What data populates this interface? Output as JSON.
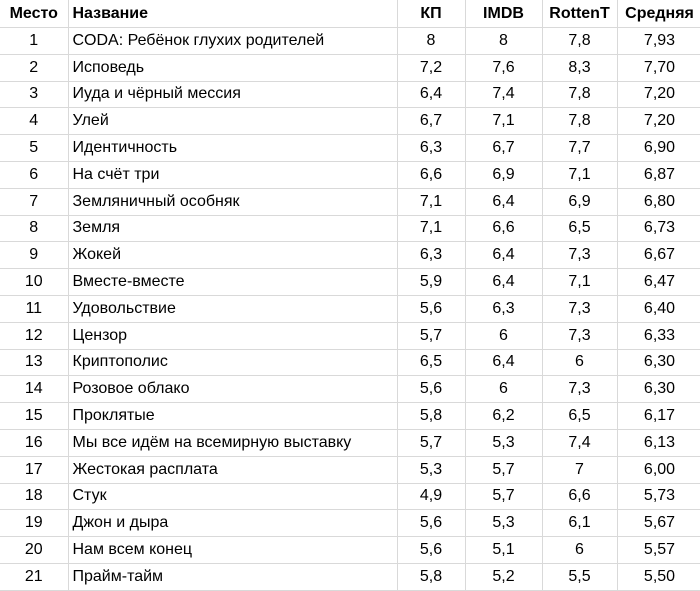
{
  "headers": [
    "Место",
    "Название",
    "КП",
    "IMDB",
    "RottenT",
    "Средняя"
  ],
  "rows": [
    [
      "1",
      "CODA: Ребёнок глухих родителей",
      "8",
      "8",
      "7,8",
      "7,93"
    ],
    [
      "2",
      "Исповедь",
      "7,2",
      "7,6",
      "8,3",
      "7,70"
    ],
    [
      "3",
      "Иуда и чёрный мессия",
      "6,4",
      "7,4",
      "7,8",
      "7,20"
    ],
    [
      "4",
      "Улей",
      "6,7",
      "7,1",
      "7,8",
      "7,20"
    ],
    [
      "5",
      "Идентичность",
      "6,3",
      "6,7",
      "7,7",
      "6,90"
    ],
    [
      "6",
      "На счёт три",
      "6,6",
      "6,9",
      "7,1",
      "6,87"
    ],
    [
      "7",
      "Земляничный особняк",
      "7,1",
      "6,4",
      "6,9",
      "6,80"
    ],
    [
      "8",
      "Земля",
      "7,1",
      "6,6",
      "6,5",
      "6,73"
    ],
    [
      "9",
      "Жокей",
      "6,3",
      "6,4",
      "7,3",
      "6,67"
    ],
    [
      "10",
      "Вместе-вместе",
      "5,9",
      "6,4",
      "7,1",
      "6,47"
    ],
    [
      "11",
      "Удовольствие",
      "5,6",
      "6,3",
      "7,3",
      "6,40"
    ],
    [
      "12",
      "Цензор",
      "5,7",
      "6",
      "7,3",
      "6,33"
    ],
    [
      "13",
      "Криптополис",
      "6,5",
      "6,4",
      "6",
      "6,30"
    ],
    [
      "14",
      "Розовое облако",
      "5,6",
      "6",
      "7,3",
      "6,30"
    ],
    [
      "15",
      "Проклятые",
      "5,8",
      "6,2",
      "6,5",
      "6,17"
    ],
    [
      "16",
      "Мы все идём на всемирную выставку",
      "5,7",
      "5,3",
      "7,4",
      "6,13"
    ],
    [
      "17",
      "Жестокая расплата",
      "5,3",
      "5,7",
      "7",
      "6,00"
    ],
    [
      "18",
      "Стук",
      "4,9",
      "5,7",
      "6,6",
      "5,73"
    ],
    [
      "19",
      "Джон и дыра",
      "5,6",
      "5,3",
      "6,1",
      "5,67"
    ],
    [
      "20",
      "Нам всем конец",
      "5,6",
      "5,1",
      "6",
      "5,57"
    ],
    [
      "21",
      "Прайм-тайм",
      "5,8",
      "5,2",
      "5,5",
      "5,50"
    ]
  ]
}
